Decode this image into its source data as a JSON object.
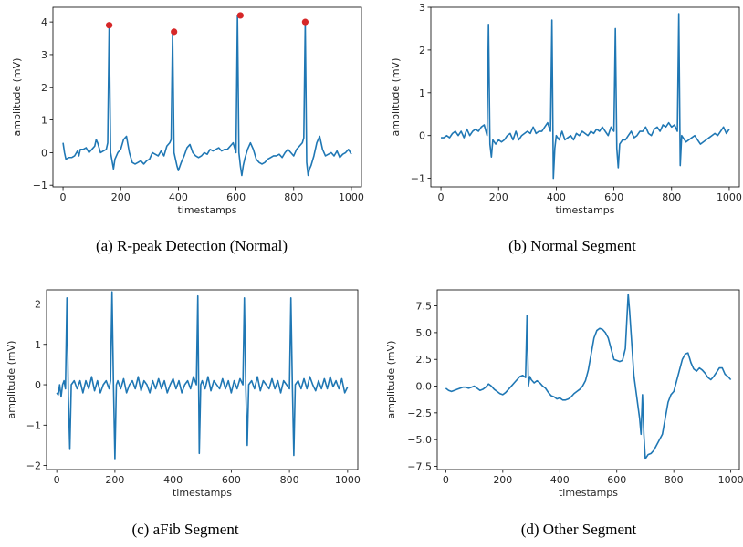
{
  "chart_data": [
    {
      "type": "line",
      "caption": "(a) R-peak Detection (Normal)",
      "xlabel": "timestamps",
      "ylabel": "amplitude (mV)",
      "xlim": [
        -35,
        1035
      ],
      "ylim": [
        -1.05,
        4.45
      ],
      "xticks": [
        0,
        200,
        400,
        600,
        800,
        1000
      ],
      "yticks": [
        -1,
        0,
        1,
        2,
        3,
        4
      ],
      "color": "#1f77b4",
      "marker_color": "#d62728",
      "series": [
        {
          "x": [
            0,
            5,
            10,
            20,
            30,
            40,
            50,
            55,
            60,
            70,
            80,
            90,
            100,
            110,
            115,
            120,
            130,
            140,
            150,
            155,
            160,
            165,
            170,
            175,
            180,
            190,
            200,
            210,
            220,
            230,
            240,
            250,
            260,
            270,
            280,
            290,
            300,
            310,
            320,
            330,
            340,
            350,
            360,
            370,
            375,
            380,
            385,
            390,
            395,
            400,
            410,
            420,
            430,
            440,
            450,
            460,
            470,
            480,
            490,
            500,
            510,
            520,
            530,
            540,
            550,
            560,
            570,
            580,
            590,
            600,
            605,
            610,
            615,
            620,
            625,
            630,
            640,
            650,
            660,
            670,
            680,
            690,
            700,
            710,
            720,
            730,
            740,
            750,
            760,
            770,
            780,
            790,
            800,
            810,
            820,
            830,
            835,
            840,
            845,
            850,
            855,
            860,
            870,
            880,
            890,
            900,
            910,
            920,
            930,
            940,
            950,
            960,
            970,
            980,
            990,
            1000
          ],
          "y": [
            0.3,
            0.0,
            -0.2,
            -0.15,
            -0.15,
            -0.1,
            0.05,
            -0.1,
            0.1,
            0.1,
            0.15,
            0.0,
            0.1,
            0.2,
            0.4,
            0.3,
            0.0,
            0.05,
            0.1,
            0.3,
            3.9,
            0.0,
            -0.25,
            -0.5,
            -0.2,
            0.0,
            0.1,
            0.4,
            0.5,
            0.0,
            -0.3,
            -0.35,
            -0.3,
            -0.25,
            -0.35,
            -0.25,
            -0.2,
            0.0,
            -0.05,
            -0.1,
            0.05,
            -0.1,
            0.2,
            0.3,
            0.4,
            3.7,
            0.0,
            -0.2,
            -0.4,
            -0.55,
            -0.3,
            -0.1,
            0.15,
            0.25,
            0.0,
            -0.1,
            -0.15,
            -0.1,
            0.0,
            -0.05,
            0.1,
            0.05,
            0.1,
            0.15,
            0.05,
            0.1,
            0.1,
            0.2,
            0.3,
            0.0,
            4.2,
            0.0,
            -0.4,
            -0.7,
            -0.4,
            -0.2,
            0.1,
            0.3,
            0.1,
            -0.2,
            -0.3,
            -0.35,
            -0.3,
            -0.2,
            -0.15,
            -0.1,
            -0.1,
            -0.05,
            -0.15,
            0.0,
            0.1,
            0.0,
            -0.1,
            0.1,
            0.2,
            0.3,
            0.45,
            4.0,
            -0.3,
            -0.7,
            -0.5,
            -0.4,
            -0.1,
            0.3,
            0.5,
            0.1,
            -0.1,
            -0.05,
            0.0,
            -0.1,
            0.05,
            -0.15,
            -0.05,
            0.0,
            0.1,
            -0.05
          ]
        }
      ],
      "markers": {
        "x": [
          160,
          385,
          615,
          840
        ],
        "y": [
          3.9,
          3.7,
          4.2,
          4.0
        ]
      }
    },
    {
      "type": "line",
      "caption": "(b) Normal Segment",
      "xlabel": "timestamps",
      "ylabel": "amplitude (mV)",
      "xlim": [
        -35,
        1035
      ],
      "ylim": [
        -1.2,
        3.0
      ],
      "xticks": [
        0,
        200,
        400,
        600,
        800,
        1000
      ],
      "yticks": [
        -1,
        0,
        1,
        2,
        3
      ],
      "color": "#1f77b4",
      "series": [
        {
          "x": [
            0,
            10,
            20,
            30,
            40,
            50,
            60,
            70,
            80,
            90,
            100,
            110,
            120,
            130,
            140,
            150,
            160,
            165,
            170,
            175,
            180,
            190,
            200,
            210,
            220,
            230,
            240,
            250,
            260,
            270,
            280,
            290,
            300,
            310,
            320,
            330,
            340,
            350,
            360,
            370,
            380,
            385,
            390,
            395,
            400,
            410,
            420,
            430,
            440,
            450,
            460,
            470,
            480,
            490,
            500,
            510,
            520,
            530,
            540,
            550,
            560,
            570,
            580,
            590,
            600,
            605,
            610,
            615,
            620,
            630,
            640,
            650,
            660,
            670,
            680,
            690,
            700,
            710,
            720,
            730,
            740,
            750,
            760,
            770,
            780,
            790,
            800,
            810,
            820,
            825,
            830,
            835,
            840,
            850,
            860,
            870,
            880,
            890,
            900,
            910,
            920,
            930,
            940,
            950,
            960,
            970,
            980,
            990,
            1000
          ],
          "y": [
            -0.05,
            -0.05,
            0.0,
            -0.05,
            0.05,
            0.1,
            0.0,
            0.1,
            -0.05,
            0.15,
            0.0,
            0.1,
            0.15,
            0.1,
            0.2,
            0.25,
            0.0,
            2.6,
            -0.2,
            -0.5,
            -0.1,
            -0.2,
            -0.1,
            -0.15,
            -0.1,
            0.0,
            0.05,
            -0.1,
            0.1,
            -0.1,
            0.0,
            0.05,
            0.1,
            0.05,
            0.2,
            0.05,
            0.1,
            0.1,
            0.2,
            0.3,
            0.1,
            2.7,
            -1.0,
            -0.3,
            0.0,
            -0.1,
            0.1,
            -0.1,
            -0.05,
            0.0,
            -0.1,
            0.05,
            0.0,
            0.1,
            0.05,
            0.0,
            0.1,
            0.05,
            0.15,
            0.1,
            0.2,
            0.1,
            0.0,
            0.2,
            0.1,
            2.5,
            -0.3,
            -0.75,
            -0.2,
            -0.1,
            -0.1,
            0.0,
            0.1,
            -0.05,
            0.0,
            0.1,
            0.1,
            0.2,
            0.05,
            0.0,
            0.15,
            0.2,
            0.1,
            0.25,
            0.2,
            0.3,
            0.2,
            0.25,
            0.1,
            2.85,
            -0.7,
            0.0,
            -0.05,
            -0.15,
            -0.1,
            -0.05,
            0.0,
            -0.1,
            -0.2,
            -0.15,
            -0.1,
            -0.05,
            0.0,
            0.05,
            0.0,
            0.1,
            0.2,
            0.05,
            0.15
          ]
        }
      ]
    },
    {
      "type": "line",
      "caption": "(c) aFib Segment",
      "xlabel": "timestamps",
      "ylabel": "amplitude (mV)",
      "xlim": [
        -35,
        1035
      ],
      "ylim": [
        -2.1,
        2.35
      ],
      "xticks": [
        0,
        200,
        400,
        600,
        800,
        1000
      ],
      "yticks": [
        -2,
        -1,
        0,
        1,
        2
      ],
      "color": "#1f77b4",
      "series": [
        {
          "x": [
            0,
            5,
            10,
            15,
            20,
            25,
            30,
            35,
            40,
            45,
            50,
            60,
            70,
            80,
            90,
            100,
            110,
            120,
            130,
            140,
            150,
            160,
            170,
            180,
            185,
            190,
            195,
            200,
            205,
            210,
            220,
            230,
            240,
            250,
            260,
            270,
            280,
            290,
            300,
            310,
            320,
            330,
            340,
            350,
            360,
            370,
            380,
            390,
            400,
            410,
            420,
            430,
            440,
            450,
            460,
            470,
            480,
            485,
            490,
            495,
            500,
            510,
            520,
            530,
            540,
            550,
            560,
            570,
            580,
            590,
            600,
            610,
            620,
            630,
            640,
            645,
            650,
            655,
            660,
            670,
            680,
            690,
            700,
            710,
            720,
            730,
            740,
            750,
            760,
            770,
            780,
            790,
            800,
            805,
            810,
            815,
            820,
            830,
            840,
            850,
            860,
            870,
            880,
            890,
            900,
            910,
            920,
            930,
            940,
            950,
            960,
            970,
            980,
            990,
            1000
          ],
          "y": [
            -0.2,
            -0.25,
            0.0,
            -0.3,
            0.0,
            0.1,
            -0.1,
            2.15,
            -0.3,
            -1.6,
            0.0,
            0.1,
            -0.1,
            0.1,
            -0.2,
            0.1,
            -0.1,
            0.2,
            -0.15,
            0.1,
            -0.2,
            0.0,
            0.1,
            -0.1,
            0.1,
            2.3,
            0.0,
            -1.85,
            0.0,
            0.1,
            -0.1,
            0.15,
            -0.2,
            0.0,
            0.1,
            -0.1,
            0.2,
            -0.15,
            0.1,
            0.0,
            -0.2,
            0.1,
            -0.1,
            0.15,
            -0.1,
            0.1,
            -0.2,
            0.0,
            0.15,
            -0.1,
            0.1,
            -0.2,
            0.0,
            0.1,
            -0.1,
            0.2,
            0.0,
            2.2,
            -1.7,
            0.0,
            0.1,
            -0.1,
            0.2,
            -0.15,
            0.1,
            0.0,
            -0.1,
            0.15,
            -0.1,
            0.1,
            -0.2,
            0.1,
            -0.1,
            0.15,
            0.0,
            2.15,
            -0.1,
            -1.5,
            0.0,
            0.1,
            -0.1,
            0.2,
            -0.15,
            0.1,
            0.0,
            -0.1,
            0.15,
            -0.1,
            0.1,
            -0.2,
            0.1,
            0.0,
            -0.1,
            2.15,
            0.0,
            -1.75,
            0.0,
            0.1,
            -0.1,
            0.15,
            -0.1,
            0.2,
            0.0,
            -0.15,
            0.1,
            -0.1,
            0.15,
            -0.1,
            0.2,
            -0.05,
            0.1,
            -0.1,
            0.15,
            -0.2,
            -0.05
          ]
        }
      ]
    },
    {
      "type": "line",
      "caption": "(d) Other Segment",
      "xlabel": "timestamps",
      "ylabel": "amplitude (mV)",
      "xlim": [
        -30,
        1030
      ],
      "ylim": [
        -7.8,
        9.0
      ],
      "xticks": [
        0,
        200,
        400,
        600,
        800,
        1000
      ],
      "xticklabels": [
        "0",
        "200",
        "400",
        "600",
        "800",
        "1000"
      ],
      "yticks": [
        -7.5,
        -5.0,
        -2.5,
        0.0,
        2.5,
        5.0,
        7.5
      ],
      "yticklabels": [
        "−7.5",
        "−5.0",
        "−2.5",
        "0.0",
        "2.5",
        "5.0",
        "7.5"
      ],
      "color": "#1f77b4",
      "series": [
        {
          "x": [
            0,
            10,
            20,
            30,
            40,
            50,
            60,
            70,
            80,
            90,
            100,
            110,
            120,
            130,
            140,
            150,
            160,
            170,
            180,
            190,
            200,
            210,
            220,
            230,
            240,
            250,
            260,
            270,
            280,
            285,
            290,
            295,
            300,
            310,
            320,
            330,
            340,
            350,
            360,
            370,
            380,
            390,
            400,
            410,
            420,
            430,
            440,
            450,
            460,
            470,
            480,
            490,
            500,
            510,
            520,
            530,
            540,
            550,
            560,
            570,
            580,
            590,
            600,
            610,
            620,
            630,
            640,
            645,
            650,
            655,
            660,
            670,
            680,
            685,
            690,
            695,
            700,
            705,
            710,
            720,
            730,
            740,
            750,
            760,
            770,
            780,
            790,
            800,
            810,
            820,
            830,
            840,
            850,
            860,
            870,
            880,
            890,
            900,
            910,
            920,
            930,
            940,
            950,
            960,
            970,
            980,
            990,
            1000
          ],
          "y": [
            -0.2,
            -0.4,
            -0.5,
            -0.4,
            -0.3,
            -0.2,
            -0.1,
            -0.1,
            -0.2,
            -0.1,
            0.0,
            -0.2,
            -0.4,
            -0.3,
            -0.1,
            0.2,
            0.0,
            -0.3,
            -0.5,
            -0.7,
            -0.8,
            -0.6,
            -0.3,
            0.0,
            0.3,
            0.6,
            0.9,
            1.0,
            0.8,
            6.6,
            0.0,
            0.9,
            0.6,
            0.3,
            0.5,
            0.3,
            0.0,
            -0.2,
            -0.6,
            -0.9,
            -1.0,
            -1.2,
            -1.1,
            -1.3,
            -1.3,
            -1.2,
            -1.0,
            -0.7,
            -0.5,
            -0.3,
            0.0,
            0.5,
            1.5,
            3.0,
            4.5,
            5.2,
            5.4,
            5.3,
            5.0,
            4.5,
            3.5,
            2.5,
            2.4,
            2.3,
            2.4,
            3.5,
            8.6,
            7.0,
            5.0,
            3.0,
            1.0,
            -1.0,
            -3.0,
            -4.5,
            -0.8,
            -4.5,
            -6.8,
            -6.6,
            -6.4,
            -6.3,
            -6.0,
            -5.5,
            -5.0,
            -4.5,
            -3.0,
            -1.5,
            -0.8,
            -0.5,
            0.5,
            1.5,
            2.5,
            3.0,
            3.1,
            2.2,
            1.6,
            1.4,
            1.7,
            1.5,
            1.2,
            0.8,
            0.6,
            0.9,
            1.3,
            1.7,
            1.7,
            1.1,
            0.9,
            0.6
          ]
        }
      ]
    }
  ]
}
